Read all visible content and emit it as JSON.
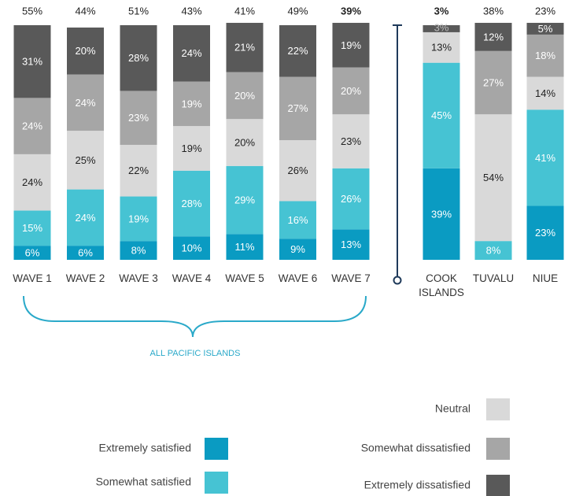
{
  "chart_data": {
    "type": "stacked_bar",
    "categories": [
      "WAVE 1",
      "WAVE 2",
      "WAVE 3",
      "WAVE 4",
      "WAVE 5",
      "WAVE 6",
      "WAVE 7",
      "COOK ISLANDS",
      "TUVALU",
      "NIUE"
    ],
    "ylim": [
      0,
      100
    ],
    "series": [
      {
        "name": "Extremely satisfied",
        "color": "#0a9bc2",
        "values": [
          6,
          6,
          8,
          10,
          11,
          9,
          13,
          39,
          null,
          23
        ],
        "value_labels": [
          "6%",
          "6%",
          "8%",
          "10%",
          "11%",
          "9%",
          "13%",
          "39%",
          null,
          "23%"
        ]
      },
      {
        "name": "Somewhat satisfied",
        "color": "#46c3d3",
        "values": [
          15,
          24,
          19,
          28,
          29,
          16,
          26,
          45,
          8,
          41
        ],
        "value_labels": [
          "15%",
          "24%",
          "19%",
          "28%",
          "29%",
          "16%",
          "26%",
          "45%",
          "8%",
          "41%"
        ]
      },
      {
        "name": "Neutral",
        "color": "#d9d9d9",
        "values": [
          24,
          25,
          22,
          19,
          20,
          26,
          23,
          13,
          54,
          14
        ],
        "value_labels": [
          "24%",
          "25%",
          "22%",
          "19%",
          "20%",
          "26%",
          "23%",
          "13%",
          "54%",
          "14%"
        ]
      },
      {
        "name": "Somewhat dissatisfied",
        "color": "#a6a6a6",
        "values": [
          24,
          24,
          23,
          19,
          20,
          27,
          20,
          null,
          27,
          18
        ],
        "value_labels": [
          "24%",
          "24%",
          "23%",
          "19%",
          "20%",
          "27%",
          "20%",
          null,
          "27%",
          "18%"
        ]
      },
      {
        "name": "Extremely dissatisfied",
        "color": "#595959",
        "values": [
          31,
          20,
          28,
          24,
          21,
          22,
          19,
          3,
          12,
          5
        ],
        "value_labels": [
          "31%",
          "20%",
          "28%",
          "24%",
          "21%",
          "22%",
          "19%",
          "3%",
          "12%",
          "5%"
        ]
      }
    ],
    "totals": {
      "values": [
        55,
        44,
        51,
        43,
        41,
        49,
        39,
        3,
        38,
        23
      ],
      "value_labels": [
        "55%",
        "44%",
        "51%",
        "43%",
        "41%",
        "49%",
        "39%",
        "3%",
        "38%",
        "23%"
      ],
      "bold": [
        false,
        false,
        false,
        false,
        false,
        false,
        true,
        true,
        false,
        false
      ]
    },
    "annotations": [
      "ALL PACIFIC ISLANDS"
    ]
  }
}
